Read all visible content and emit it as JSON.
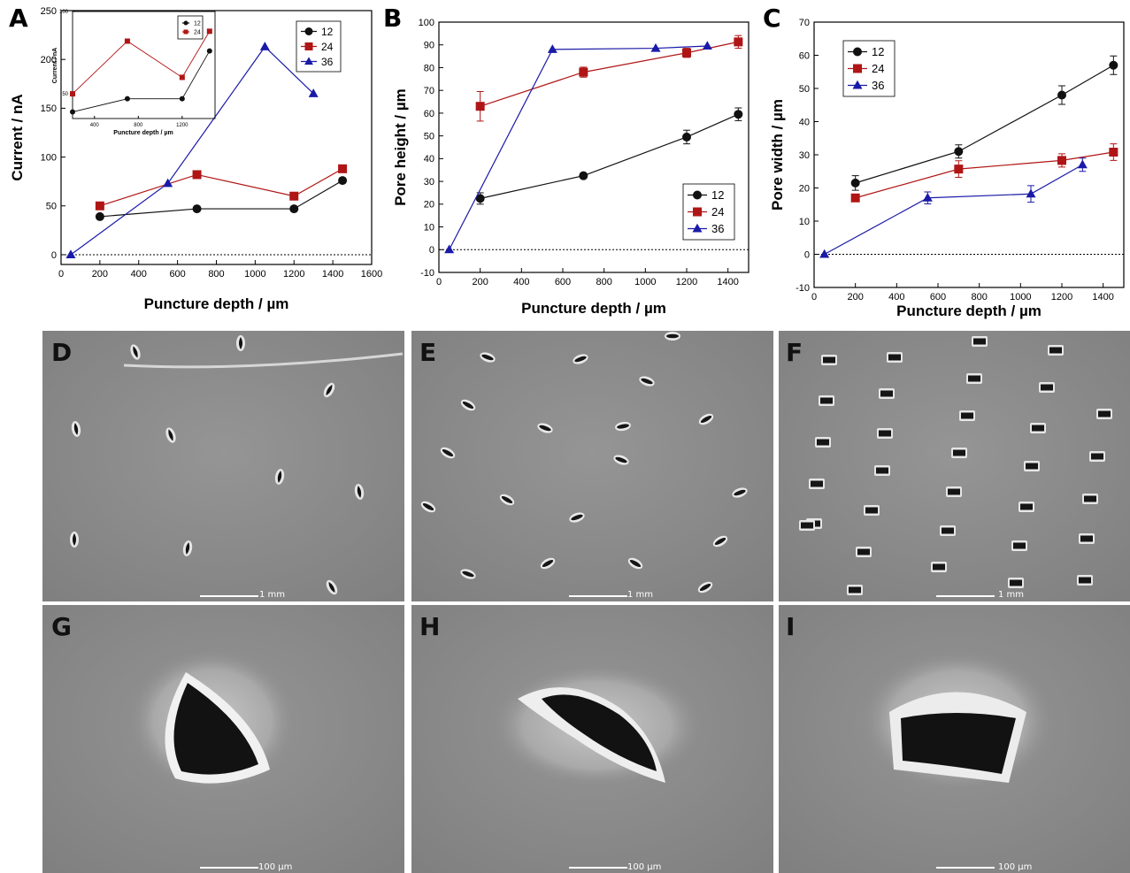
{
  "panels": {
    "A": "A",
    "B": "B",
    "C": "C",
    "D": "D",
    "E": "E",
    "F": "F",
    "G": "G",
    "H": "H",
    "I": "I"
  },
  "scalebars": {
    "mm": "1 mm",
    "um": "100 µm"
  },
  "colors": {
    "s12": "#111111",
    "s24": "#b01515",
    "s36": "#1a1aa8"
  },
  "chart_data": [
    {
      "panel": "A",
      "type": "line",
      "xlabel": "Puncture depth / µm",
      "ylabel": "Current / nA",
      "xlim": [
        0,
        1600
      ],
      "ylim": [
        -10,
        250
      ],
      "xticks": [
        0,
        200,
        400,
        600,
        800,
        1000,
        1200,
        1400,
        1600
      ],
      "yticks": [
        0,
        50,
        100,
        150,
        200,
        250
      ],
      "legend": "top-right",
      "series": [
        {
          "name": "12",
          "x": [
            200,
            700,
            1200,
            1450
          ],
          "y": [
            39,
            47,
            47,
            76
          ]
        },
        {
          "name": "24",
          "x": [
            200,
            700,
            1200,
            1450
          ],
          "y": [
            50,
            82,
            60,
            88
          ]
        },
        {
          "name": "36",
          "x": [
            50,
            550,
            1050,
            1300
          ],
          "y": [
            0,
            73,
            213,
            165
          ]
        }
      ],
      "inset": {
        "type": "line",
        "xlabel": "Puncture depth / µm",
        "ylabel": "Current / nA",
        "xlim": [
          200,
          1500
        ],
        "ylim": [
          35,
          100
        ],
        "xticks": [
          400,
          800,
          1200
        ],
        "yticks": [
          50,
          100
        ],
        "legend": "top-right",
        "series": [
          {
            "name": "12",
            "x": [
              200,
              700,
              1200,
              1450
            ],
            "y": [
              39,
              47,
              47,
              76
            ]
          },
          {
            "name": "24",
            "x": [
              200,
              700,
              1200,
              1450
            ],
            "y": [
              50,
              82,
              60,
              88
            ]
          }
        ]
      }
    },
    {
      "panel": "B",
      "type": "line",
      "xlabel": "Puncture depth / µm",
      "ylabel": "Pore height / µm",
      "xlim": [
        0,
        1500
      ],
      "ylim": [
        -10,
        100
      ],
      "xticks": [
        0,
        200,
        400,
        600,
        800,
        1000,
        1200,
        1400
      ],
      "yticks": [
        -10,
        0,
        10,
        20,
        30,
        40,
        50,
        60,
        70,
        80,
        90,
        100
      ],
      "legend": "bottom-right",
      "series": [
        {
          "name": "12",
          "x": [
            200,
            700,
            1200,
            1450
          ],
          "y": [
            22.5,
            32.5,
            49.5,
            59.5
          ],
          "err": [
            2.5,
            1,
            3,
            2.8
          ]
        },
        {
          "name": "24",
          "x": [
            200,
            700,
            1200,
            1450
          ],
          "y": [
            63,
            78,
            86.5,
            91.3
          ],
          "err": [
            6.5,
            2.2,
            2,
            2.8
          ]
        },
        {
          "name": "36",
          "x": [
            50,
            550,
            1050,
            1300
          ],
          "y": [
            0,
            88,
            88.5,
            89.5
          ]
        }
      ]
    },
    {
      "panel": "C",
      "type": "line",
      "xlabel": "Puncture depth / µm",
      "ylabel": "Pore width / µm",
      "xlim": [
        0,
        1500
      ],
      "ylim": [
        -10,
        70
      ],
      "xticks": [
        0,
        200,
        400,
        600,
        800,
        1000,
        1200,
        1400
      ],
      "yticks": [
        -10,
        0,
        10,
        20,
        30,
        40,
        50,
        60,
        70
      ],
      "legend": "top-left",
      "series": [
        {
          "name": "12",
          "x": [
            200,
            700,
            1200,
            1450
          ],
          "y": [
            21.5,
            31,
            48,
            57
          ],
          "err": [
            2.2,
            2,
            2.8,
            2.8
          ]
        },
        {
          "name": "24",
          "x": [
            200,
            700,
            1200,
            1450
          ],
          "y": [
            17,
            25.7,
            28.3,
            30.8
          ],
          "err": [
            0.8,
            2.5,
            2,
            2.5
          ]
        },
        {
          "name": "36",
          "x": [
            50,
            550,
            1050,
            1300
          ],
          "y": [
            0,
            17,
            18.2,
            27
          ],
          "err": [
            0,
            1.8,
            2.5,
            2
          ]
        }
      ]
    }
  ]
}
